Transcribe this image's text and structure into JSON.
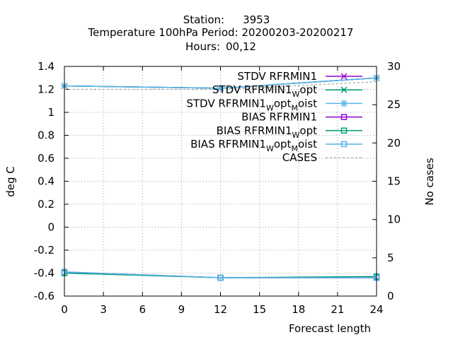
{
  "title": {
    "station_label": "Station:",
    "station_value": "3953",
    "line2": "Temperature 100hPa   Period: 20200203-20200217",
    "hours_label": "Hours:",
    "hours_value": "00,12"
  },
  "colors": {
    "purple": "#9400d3",
    "teal": "#009e73",
    "skyblue": "#56b4e9",
    "cases": "#a0a0a0",
    "grid": "#a0a0a0"
  },
  "chart_data": {
    "type": "line",
    "xlabel": "Forecast length",
    "ylabel": "deg C",
    "y2label": "No cases",
    "xlim": [
      0,
      24
    ],
    "ylim": [
      -0.6,
      1.4
    ],
    "y2lim": [
      0,
      30
    ],
    "x_ticks": [
      "0",
      "3",
      "6",
      "9",
      "12",
      "15",
      "18",
      "21",
      "24"
    ],
    "y_ticks": [
      "-0.6",
      "-0.4",
      "-0.2",
      "0",
      "0.2",
      "0.4",
      "0.6",
      "0.8",
      "1",
      "1.2",
      "1.4"
    ],
    "y2_ticks": [
      "0",
      "5",
      "10",
      "15",
      "20",
      "25",
      "30"
    ],
    "grid": true,
    "legend_position": "top-right",
    "x": [
      0,
      12,
      24
    ],
    "series": [
      {
        "name": "STDV RFRMIN1",
        "label_main": "STDV RFRMIN1",
        "sub1": "",
        "tail1": "",
        "sub2": "",
        "tail2": "",
        "axis": "y",
        "marker": "x",
        "color": "purple",
        "values": [
          1.23,
          1.21,
          1.3
        ]
      },
      {
        "name": "STDV RFRMIN1_Wopt",
        "label_main": "STDV RFRMIN1",
        "sub1": "W",
        "tail1": "opt",
        "sub2": "",
        "tail2": "",
        "axis": "y",
        "marker": "x",
        "color": "teal",
        "values": [
          1.23,
          1.21,
          1.3
        ]
      },
      {
        "name": "STDV RFRMIN1_Wopt_Moist",
        "label_main": "STDV RFRMIN1",
        "sub1": "W",
        "tail1": "opt",
        "sub2": "M",
        "tail2": "oist",
        "axis": "y",
        "marker": "star",
        "color": "skyblue",
        "values": [
          1.23,
          1.21,
          1.3
        ]
      },
      {
        "name": "BIAS RFRMIN1",
        "label_main": "BIAS RFRMIN1",
        "sub1": "",
        "tail1": "",
        "sub2": "",
        "tail2": "",
        "axis": "y",
        "marker": "square",
        "color": "purple",
        "values": [
          -0.39,
          -0.44,
          -0.44
        ]
      },
      {
        "name": "BIAS RFRMIN1_Wopt",
        "label_main": "BIAS RFRMIN1",
        "sub1": "W",
        "tail1": "opt",
        "sub2": "",
        "tail2": "",
        "axis": "y",
        "marker": "square",
        "color": "teal",
        "values": [
          -0.4,
          -0.44,
          -0.43
        ]
      },
      {
        "name": "BIAS RFRMIN1_Wopt_Moist",
        "label_main": "BIAS RFRMIN1",
        "sub1": "W",
        "tail1": "opt",
        "sub2": "M",
        "tail2": "oist",
        "axis": "y",
        "marker": "square",
        "color": "skyblue",
        "values": [
          -0.39,
          -0.44,
          -0.44
        ]
      },
      {
        "name": "CASES",
        "label_main": "CASES",
        "sub1": "",
        "tail1": "",
        "sub2": "",
        "tail2": "",
        "axis": "y2",
        "marker": "none",
        "color": "cases",
        "dashed": true,
        "values": [
          27,
          27,
          28
        ]
      }
    ]
  }
}
